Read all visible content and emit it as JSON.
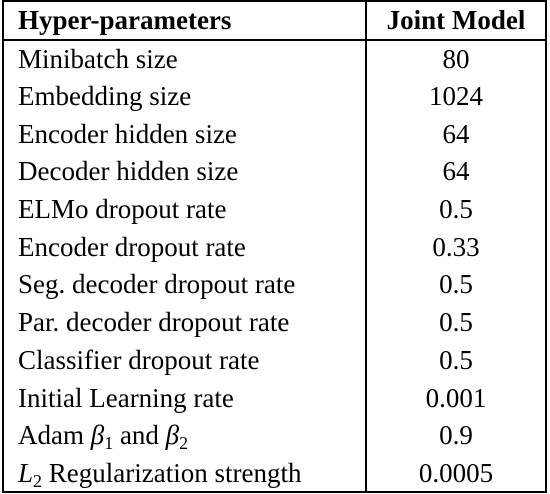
{
  "table": {
    "headers": [
      "Hyper-parameters",
      "Joint Model"
    ],
    "rows": [
      {
        "name": "Minibatch size",
        "value": "80"
      },
      {
        "name": "Embedding size",
        "value": "1024"
      },
      {
        "name": "Encoder hidden size",
        "value": "64"
      },
      {
        "name": "Decoder hidden size",
        "value": "64"
      },
      {
        "name": "ELMo dropout rate",
        "value": "0.5"
      },
      {
        "name": "Encoder dropout rate",
        "value": "0.33"
      },
      {
        "name": "Seg. decoder dropout rate",
        "value": "0.5"
      },
      {
        "name": "Par. decoder dropout rate",
        "value": "0.5"
      },
      {
        "name": "Classifier dropout rate",
        "value": "0.5"
      },
      {
        "name": "Initial Learning rate",
        "value": "0.001"
      },
      {
        "name": "Adam β1 and β2",
        "value": "0.9",
        "parts": {
          "pre": "Adam ",
          "sym1": "β",
          "sub1": "1",
          "mid": " and ",
          "sym2": "β",
          "sub2": "2"
        }
      },
      {
        "name": "L2 Regularization strength",
        "value": "0.0005",
        "parts": {
          "sym": "L",
          "sub": "2",
          "post": " Regularization strength"
        }
      }
    ]
  }
}
